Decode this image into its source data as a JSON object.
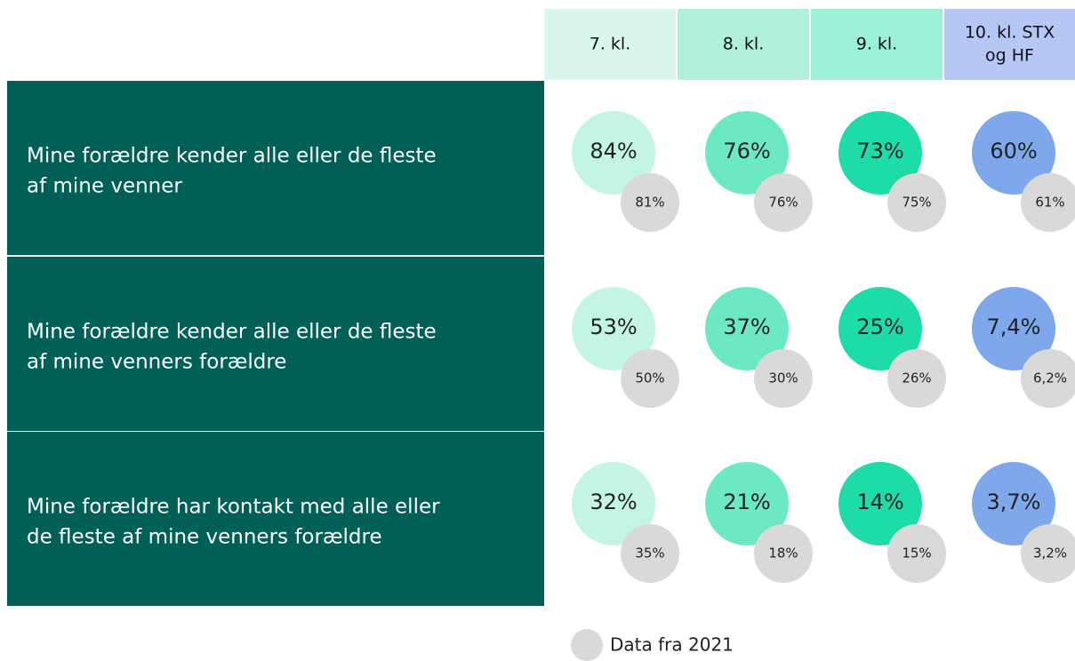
{
  "columns": [
    [
      "7. kl."
    ],
    [
      "8. kl."
    ],
    [
      "9. kl."
    ],
    [
      "10. kl. STX",
      "og HF"
    ]
  ],
  "rows": [
    {
      "label": [
        "Mine forældre kender alle eller de fleste",
        "af mine venner"
      ],
      "values": [
        "84%",
        "76%",
        "73%",
        "60%"
      ],
      "values_2021": [
        "81%",
        "76%",
        "75%",
        "61%"
      ]
    },
    {
      "label": [
        "Mine forældre kender alle eller de fleste",
        "af mine venners forældre"
      ],
      "values": [
        "53%",
        "37%",
        "25%",
        "7,4%"
      ],
      "values_2021": [
        "50%",
        "30%",
        "26%",
        "6,2%"
      ]
    },
    {
      "label": [
        "Mine forældre har kontakt med alle eller",
        "de fleste af mine venners forældre"
      ],
      "values": [
        "32%",
        "21%",
        "14%",
        "3,7%"
      ],
      "values_2021": [
        "35%",
        "18%",
        "15%",
        "3,2%"
      ]
    }
  ],
  "legend": "Data fra 2021"
}
